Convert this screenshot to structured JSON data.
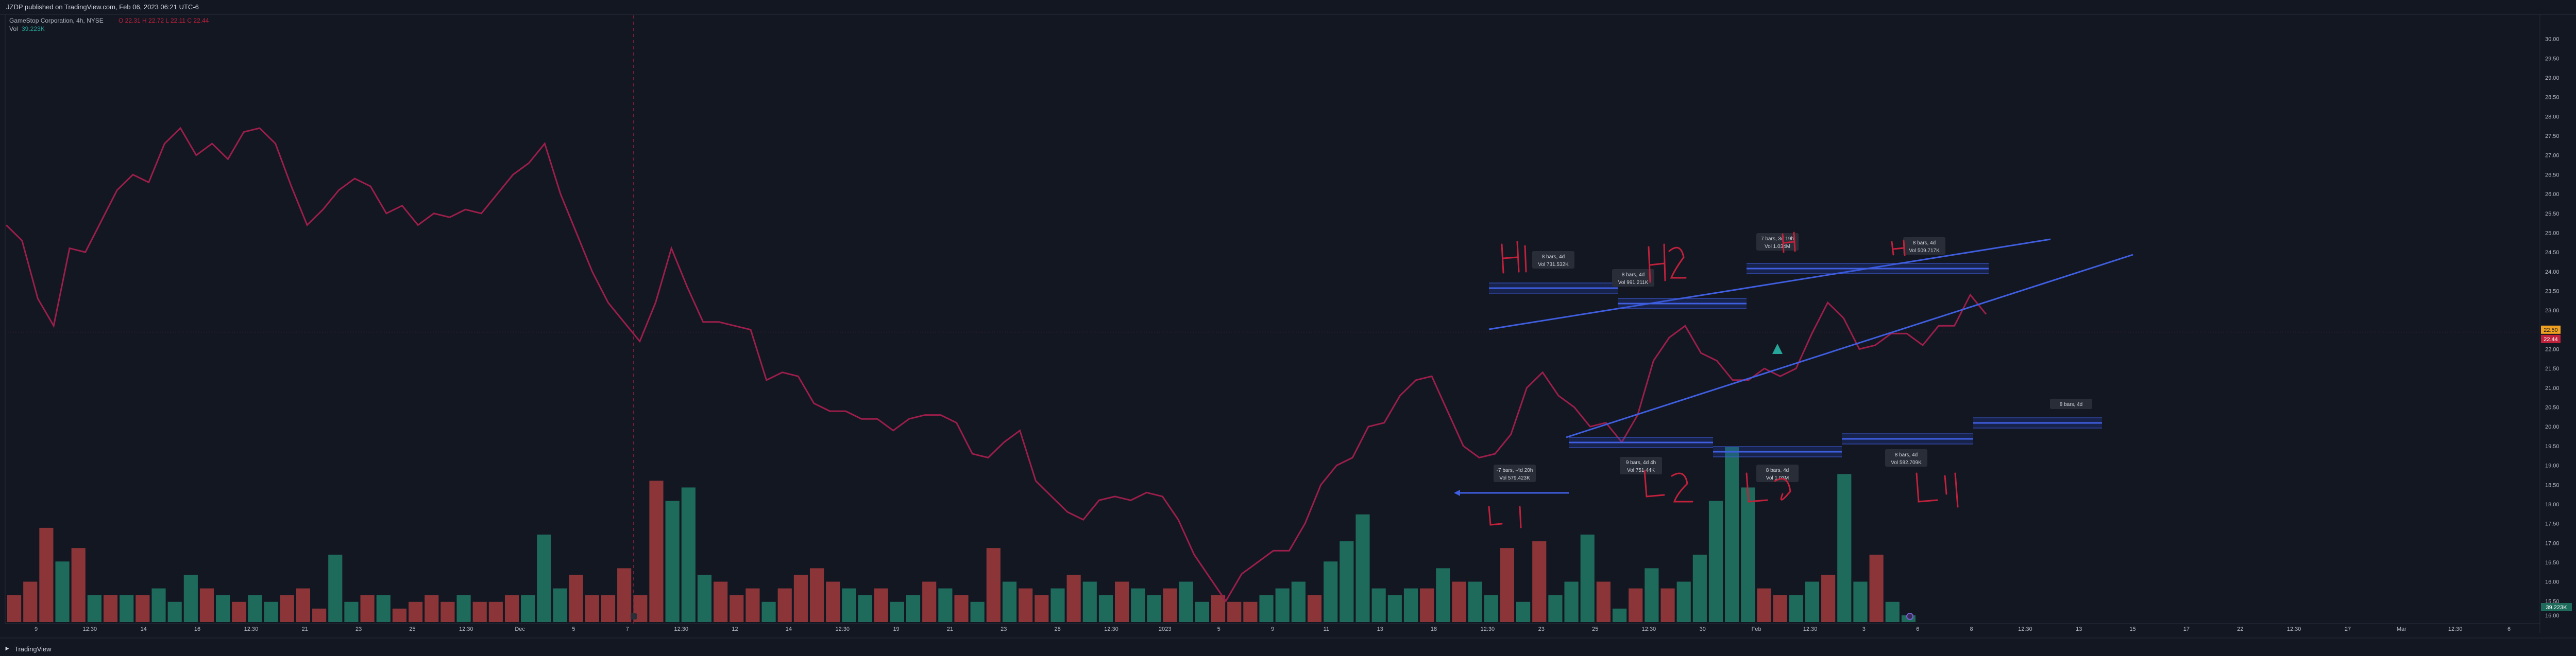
{
  "header": {
    "published": "JZDP published on TradingView.com, Feb 06, 2023 06:21 UTC-6",
    "symbol_line": "GameStop Corporation, 4h, NYSE",
    "symbol_values": "O 22.31 H 22.72 L 22.11 C 22.44",
    "vol_label": "Vol",
    "vol_value": "39.223K"
  },
  "footer": {
    "brand": "TradingView"
  },
  "colors": {
    "background": "#131722",
    "price_line": "#9c1e4a",
    "volume_up": "#1e6b5c",
    "volume_down": "#8b3538",
    "trendline": "#3f5ee0",
    "annotation_red": "#c2213c",
    "marker_teal": "#26a69a",
    "vertical_marker": "#7a1c34"
  },
  "chart_data": {
    "type": "line",
    "title": "GameStop Corporation, 4h, NYSE",
    "ylim": [
      15.0,
      30.5
    ],
    "y_ticks": [
      "30.00",
      "29.50",
      "29.00",
      "28.50",
      "28.00",
      "27.50",
      "27.00",
      "26.50",
      "26.00",
      "25.50",
      "25.00",
      "24.50",
      "24.00",
      "23.50",
      "23.00",
      "22.50",
      "22.00",
      "21.50",
      "21.00",
      "20.50",
      "20.00",
      "19.50",
      "19.00",
      "18.50",
      "18.00",
      "17.50",
      "17.00",
      "16.50",
      "16.00",
      "15.50"
    ],
    "x_ticks": [
      "9",
      "12:30",
      "14",
      "16",
      "12:30",
      "21",
      "23",
      "25",
      "12:30",
      "Dec",
      "5",
      "7",
      "12:30",
      "12",
      "14",
      "12:30",
      "19",
      "21",
      "23",
      "28",
      "12:30",
      "2023",
      "5",
      "9",
      "11",
      "13",
      "18",
      "12:30",
      "23",
      "25",
      "12:30",
      "30",
      "Feb",
      "12:30",
      "3",
      "6",
      "8",
      "12:30",
      "13",
      "15",
      "17",
      "22",
      "12:30",
      "27",
      "Mar",
      "12:30",
      "6"
    ],
    "price_series": [
      25.2,
      24.8,
      23.3,
      22.6,
      24.6,
      24.5,
      25.3,
      26.1,
      26.5,
      26.3,
      27.3,
      27.7,
      27.0,
      27.3,
      26.9,
      27.6,
      27.7,
      27.3,
      26.2,
      25.2,
      25.6,
      26.1,
      26.4,
      26.2,
      25.5,
      25.7,
      25.2,
      25.5,
      25.4,
      25.6,
      25.5,
      26.0,
      26.5,
      26.8,
      27.3,
      26.0,
      25.0,
      24.0,
      23.2,
      22.7,
      22.2,
      23.2,
      24.6,
      23.6,
      22.7,
      22.7,
      22.6,
      22.5,
      21.2,
      21.4,
      21.3,
      20.6,
      20.4,
      20.4,
      20.2,
      20.2,
      19.9,
      20.2,
      20.3,
      20.3,
      20.1,
      19.3,
      19.2,
      19.6,
      19.9,
      18.6,
      18.2,
      17.8,
      17.6,
      18.1,
      18.2,
      18.1,
      18.3,
      18.2,
      17.6,
      16.7,
      16.1,
      15.5,
      16.2,
      16.5,
      16.8,
      16.8,
      17.5,
      18.5,
      19.0,
      19.2,
      20.0,
      20.1,
      20.8,
      21.2,
      21.3,
      20.4,
      19.5,
      19.2,
      19.3,
      19.8,
      21.0,
      21.4,
      20.8,
      20.5,
      20.0,
      20.1,
      19.6,
      20.3,
      21.7,
      22.3,
      22.6,
      21.9,
      21.7,
      21.2,
      21.2,
      21.5,
      21.3,
      21.5,
      22.4,
      23.2,
      22.8,
      22.0,
      22.1,
      22.4,
      22.4,
      22.1,
      22.6,
      22.6,
      23.4,
      22.9
    ],
    "volume_series": [
      {
        "v": 4,
        "up": false
      },
      {
        "v": 6,
        "up": false
      },
      {
        "v": 14,
        "up": false
      },
      {
        "v": 9,
        "up": true
      },
      {
        "v": 11,
        "up": false
      },
      {
        "v": 4,
        "up": true
      },
      {
        "v": 4,
        "up": false
      },
      {
        "v": 4,
        "up": true
      },
      {
        "v": 4,
        "up": false
      },
      {
        "v": 5,
        "up": true
      },
      {
        "v": 3,
        "up": true
      },
      {
        "v": 7,
        "up": true
      },
      {
        "v": 5,
        "up": false
      },
      {
        "v": 4,
        "up": true
      },
      {
        "v": 3,
        "up": false
      },
      {
        "v": 4,
        "up": true
      },
      {
        "v": 3,
        "up": true
      },
      {
        "v": 4,
        "up": false
      },
      {
        "v": 5,
        "up": false
      },
      {
        "v": 2,
        "up": false
      },
      {
        "v": 10,
        "up": true
      },
      {
        "v": 3,
        "up": true
      },
      {
        "v": 4,
        "up": false
      },
      {
        "v": 4,
        "up": true
      },
      {
        "v": 2,
        "up": false
      },
      {
        "v": 3,
        "up": false
      },
      {
        "v": 4,
        "up": false
      },
      {
        "v": 3,
        "up": false
      },
      {
        "v": 4,
        "up": true
      },
      {
        "v": 3,
        "up": false
      },
      {
        "v": 3,
        "up": false
      },
      {
        "v": 4,
        "up": false
      },
      {
        "v": 4,
        "up": true
      },
      {
        "v": 13,
        "up": true
      },
      {
        "v": 5,
        "up": true
      },
      {
        "v": 7,
        "up": false
      },
      {
        "v": 4,
        "up": false
      },
      {
        "v": 4,
        "up": false
      },
      {
        "v": 8,
        "up": false
      },
      {
        "v": 4,
        "up": false
      },
      {
        "v": 21,
        "up": false
      },
      {
        "v": 18,
        "up": true
      },
      {
        "v": 20,
        "up": true
      },
      {
        "v": 7,
        "up": true
      },
      {
        "v": 6,
        "up": false
      },
      {
        "v": 4,
        "up": false
      },
      {
        "v": 5,
        "up": false
      },
      {
        "v": 3,
        "up": true
      },
      {
        "v": 5,
        "up": false
      },
      {
        "v": 7,
        "up": false
      },
      {
        "v": 8,
        "up": false
      },
      {
        "v": 6,
        "up": false
      },
      {
        "v": 5,
        "up": true
      },
      {
        "v": 4,
        "up": true
      },
      {
        "v": 5,
        "up": false
      },
      {
        "v": 3,
        "up": true
      },
      {
        "v": 4,
        "up": true
      },
      {
        "v": 6,
        "up": false
      },
      {
        "v": 5,
        "up": true
      },
      {
        "v": 4,
        "up": false
      },
      {
        "v": 3,
        "up": true
      },
      {
        "v": 11,
        "up": false
      },
      {
        "v": 6,
        "up": true
      },
      {
        "v": 5,
        "up": false
      },
      {
        "v": 4,
        "up": false
      },
      {
        "v": 5,
        "up": true
      },
      {
        "v": 7,
        "up": false
      },
      {
        "v": 6,
        "up": true
      },
      {
        "v": 4,
        "up": true
      },
      {
        "v": 6,
        "up": false
      },
      {
        "v": 5,
        "up": true
      },
      {
        "v": 4,
        "up": true
      },
      {
        "v": 5,
        "up": false
      },
      {
        "v": 6,
        "up": true
      },
      {
        "v": 3,
        "up": true
      },
      {
        "v": 4,
        "up": false
      },
      {
        "v": 3,
        "up": false
      },
      {
        "v": 3,
        "up": false
      },
      {
        "v": 4,
        "up": true
      },
      {
        "v": 5,
        "up": true
      },
      {
        "v": 6,
        "up": true
      },
      {
        "v": 4,
        "up": false
      },
      {
        "v": 9,
        "up": true
      },
      {
        "v": 12,
        "up": true
      },
      {
        "v": 16,
        "up": true
      },
      {
        "v": 5,
        "up": true
      },
      {
        "v": 4,
        "up": true
      },
      {
        "v": 5,
        "up": true
      },
      {
        "v": 5,
        "up": false
      },
      {
        "v": 8,
        "up": true
      },
      {
        "v": 6,
        "up": false
      },
      {
        "v": 6,
        "up": true
      },
      {
        "v": 4,
        "up": true
      },
      {
        "v": 11,
        "up": false
      },
      {
        "v": 3,
        "up": true
      },
      {
        "v": 12,
        "up": false
      },
      {
        "v": 4,
        "up": true
      },
      {
        "v": 6,
        "up": true
      },
      {
        "v": 13,
        "up": true
      },
      {
        "v": 6,
        "up": false
      },
      {
        "v": 2,
        "up": true
      },
      {
        "v": 5,
        "up": false
      },
      {
        "v": 8,
        "up": true
      },
      {
        "v": 5,
        "up": false
      },
      {
        "v": 6,
        "up": true
      },
      {
        "v": 10,
        "up": true
      },
      {
        "v": 18,
        "up": true
      },
      {
        "v": 26,
        "up": true
      },
      {
        "v": 20,
        "up": true
      },
      {
        "v": 5,
        "up": false
      },
      {
        "v": 4,
        "up": false
      },
      {
        "v": 4,
        "up": true
      },
      {
        "v": 6,
        "up": true
      },
      {
        "v": 7,
        "up": false
      },
      {
        "v": 22,
        "up": true
      },
      {
        "v": 6,
        "up": true
      },
      {
        "v": 10,
        "up": false
      },
      {
        "v": 3,
        "up": true
      },
      {
        "v": 1,
        "up": true
      }
    ],
    "last_price_label": "22.44",
    "price_badge_labels": [
      "22.50",
      "22.44"
    ],
    "volume_badge_label": "39.223K",
    "volume_badge_sub": "16.00",
    "annotations": [
      {
        "text1": "8 bars, 4d",
        "text2": "Vol 731.532K"
      },
      {
        "text1": "8 bars, 4d",
        "text2": "Vol 991.211K"
      },
      {
        "text1": "7 bars, 3d 19h",
        "text2": "Vol 1.034M"
      },
      {
        "text1": "8 bars, 4d",
        "text2": "Vol 509.717K"
      },
      {
        "text1": "-7 bars, -4d 20h",
        "text2": "Vol 579.423K"
      },
      {
        "text1": "9 bars, 4d 4h",
        "text2": "Vol 751.44K"
      },
      {
        "text1": "8 bars, 4d",
        "text2": "Vol 1.03M"
      },
      {
        "text1": "8 bars, 4d",
        "text2": "Vol 582.709K"
      },
      {
        "text1": "8 bars, 4d",
        "text2": ""
      }
    ]
  }
}
